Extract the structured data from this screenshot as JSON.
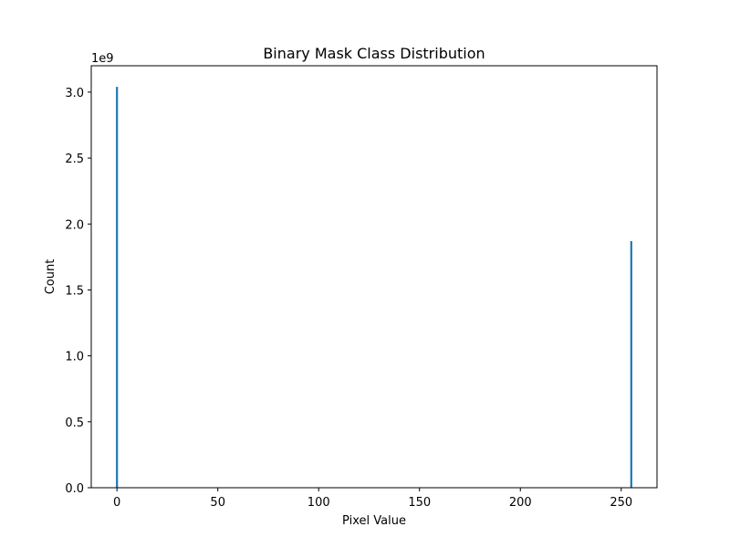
{
  "chart_data": {
    "type": "bar",
    "title": "Binary Mask Class Distribution",
    "xlabel": "Pixel Value",
    "ylabel": "Count",
    "x": [
      0,
      255
    ],
    "values": [
      3040000000,
      1870000000
    ],
    "xlim": [
      -12.75,
      267.75
    ],
    "ylim": [
      0,
      3200000000
    ],
    "x_ticks": [
      0,
      50,
      100,
      150,
      200,
      250
    ],
    "x_tick_labels": [
      "0",
      "50",
      "100",
      "150",
      "200",
      "250"
    ],
    "y_ticks": [
      0,
      500000000,
      1000000000,
      1500000000,
      2000000000,
      2500000000,
      3000000000
    ],
    "y_tick_labels": [
      "0.0",
      "0.5",
      "1.0",
      "1.5",
      "2.0",
      "2.5",
      "3.0"
    ],
    "y_offset_label": "1e9",
    "bar_width": 1,
    "bar_color": "#1f77b4",
    "grid": false,
    "legend": "none"
  }
}
